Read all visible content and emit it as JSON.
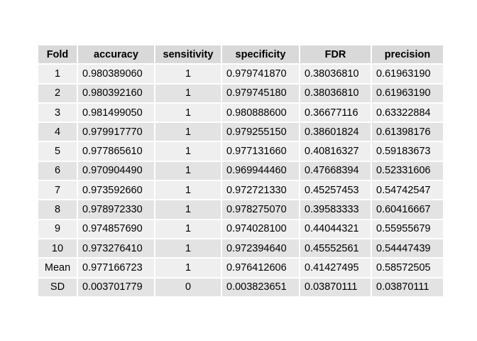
{
  "chart_data": {
    "type": "table",
    "columns": [
      "Fold",
      "accuracy",
      "sensitivity",
      "specificity",
      "FDR",
      "precision"
    ],
    "rows": [
      [
        "1",
        "0.980389060",
        "1",
        "0.979741870",
        "0.38036810",
        "0.61963190"
      ],
      [
        "2",
        "0.980392160",
        "1",
        "0.979745180",
        "0.38036810",
        "0.61963190"
      ],
      [
        "3",
        "0.981499050",
        "1",
        "0.980888600",
        "0.36677116",
        "0.63322884"
      ],
      [
        "4",
        "0.979917770",
        "1",
        "0.979255150",
        "0.38601824",
        "0.61398176"
      ],
      [
        "5",
        "0.977865610",
        "1",
        "0.977131660",
        "0.40816327",
        "0.59183673"
      ],
      [
        "6",
        "0.970904490",
        "1",
        "0.969944460",
        "0.47668394",
        "0.52331606"
      ],
      [
        "7",
        "0.973592660",
        "1",
        "0.972721330",
        "0.45257453",
        "0.54742547"
      ],
      [
        "8",
        "0.978972330",
        "1",
        "0.978275070",
        "0.39583333",
        "0.60416667"
      ],
      [
        "9",
        "0.974857690",
        "1",
        "0.974028100",
        "0.44044321",
        "0.55955679"
      ],
      [
        "10",
        "0.973276410",
        "1",
        "0.972394640",
        "0.45552561",
        "0.54447439"
      ],
      [
        "Mean",
        "0.977166723",
        "1",
        "0.976412606",
        "0.41427495",
        "0.58572505"
      ],
      [
        "SD",
        "0.003701779",
        "0",
        "0.003823651",
        "0.03870111",
        "0.03870111"
      ]
    ]
  }
}
